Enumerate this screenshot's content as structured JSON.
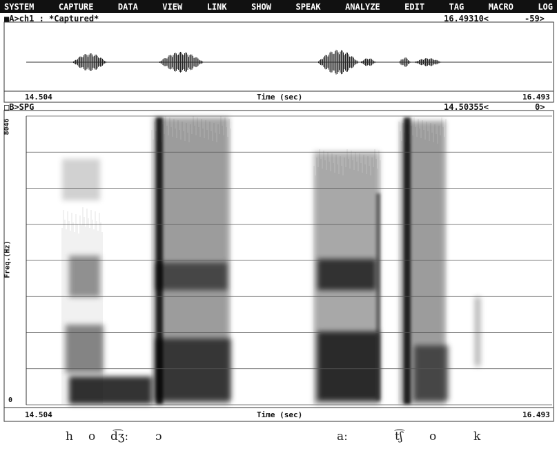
{
  "menu": [
    "SYSTEM",
    "CAPTURE",
    "DATA",
    "VIEW",
    "LINK",
    "SHOW",
    "SPEAK",
    "ANALYZE",
    "EDIT",
    "TAG",
    "MACRO",
    "LOG"
  ],
  "panel_a": {
    "header": "■A>ch1 : *Captured*",
    "cursor": "16.49310<",
    "level": "-59>",
    "x_start": "14.504",
    "x_label": "Time (sec)",
    "x_end": "16.493"
  },
  "panel_b": {
    "header": "□B>SPG",
    "cursor": "14.50355<",
    "level": "0>",
    "y_max": "8046",
    "y_min": "0",
    "y_label": "Freq.(Hz)",
    "x_start": "14.504",
    "x_label": "Time (sec)",
    "x_end": "16.493"
  },
  "transcription": [
    "h",
    "o",
    "d͡ʒː",
    "ɔ",
    "aː",
    "t͡ʃ",
    "o",
    "k"
  ]
}
